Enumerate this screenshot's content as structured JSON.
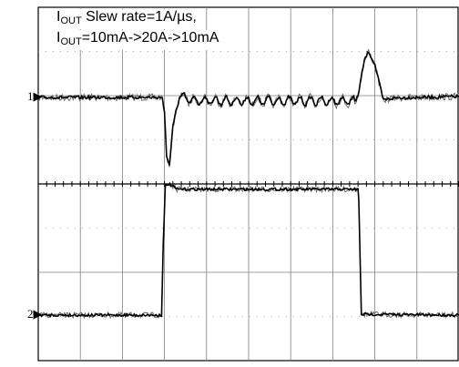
{
  "annotation": {
    "line1_symbol": "I",
    "line1_sub": "OUT",
    "line1_text": " Slew rate=1A/µs,",
    "line2_symbol": "I",
    "line2_sub": "OUT",
    "line2_text": "=10mA->20A->10mA"
  },
  "chart_data": {
    "type": "line",
    "title": "",
    "xlabel": "",
    "ylabel": "",
    "grid": true,
    "grid_divisions": {
      "x": 10,
      "y": 8
    },
    "x_range_div": [
      0,
      10
    ],
    "y_range_div": [
      0,
      8
    ],
    "channels": [
      {
        "marker": "1",
        "color": "#000000",
        "description_values_in_divisions": "output voltage transient",
        "baseline_div": 5.96,
        "points_div": [
          [
            0.0,
            5.96
          ],
          [
            2.95,
            5.96
          ],
          [
            3.0,
            5.6
          ],
          [
            3.05,
            4.6
          ],
          [
            3.12,
            4.45
          ],
          [
            3.2,
            5.3
          ],
          [
            3.35,
            6.0
          ],
          [
            3.6,
            5.9
          ],
          [
            4.5,
            5.88
          ],
          [
            6.0,
            5.88
          ],
          [
            7.55,
            5.88
          ],
          [
            7.6,
            6.0
          ],
          [
            7.75,
            6.8
          ],
          [
            7.85,
            7.0
          ],
          [
            8.0,
            6.7
          ],
          [
            8.2,
            5.9
          ],
          [
            8.5,
            5.95
          ],
          [
            10.0,
            5.98
          ]
        ]
      },
      {
        "marker": "2",
        "color": "#000000",
        "description_values_in_divisions": "load current step",
        "points_div": [
          [
            0.0,
            1.03
          ],
          [
            2.93,
            1.03
          ],
          [
            2.97,
            2.6
          ],
          [
            3.02,
            3.95
          ],
          [
            3.1,
            4.0
          ],
          [
            3.3,
            3.88
          ],
          [
            7.6,
            3.88
          ],
          [
            7.62,
            3.6
          ],
          [
            7.68,
            1.05
          ],
          [
            10.0,
            1.03
          ]
        ]
      }
    ]
  }
}
